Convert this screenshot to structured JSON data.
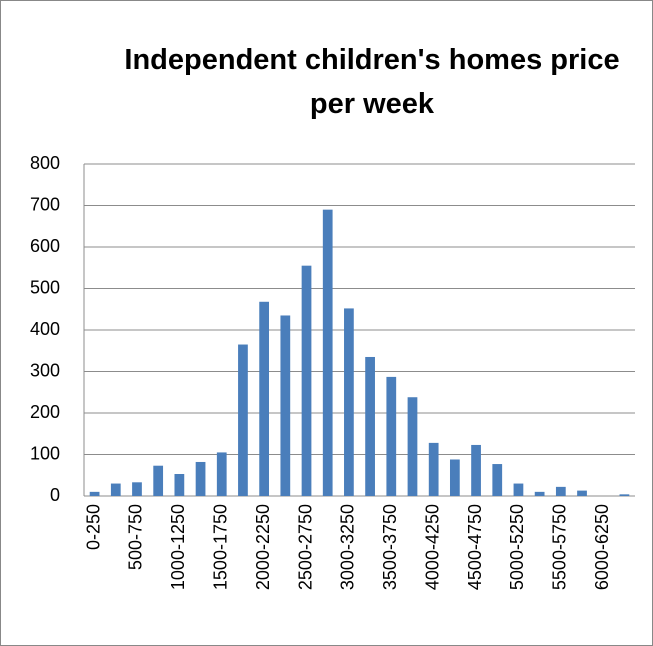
{
  "chart_data": {
    "type": "bar",
    "title": "Independent children's homes price per week",
    "categories": [
      "0-250",
      null,
      "500-750",
      null,
      "1000-1250",
      null,
      "1500-1750",
      null,
      "2000-2250",
      null,
      "2500-2750",
      null,
      "3000-3250",
      null,
      "3500-3750",
      null,
      "4000-4250",
      null,
      "4500-4750",
      null,
      "5000-5250",
      null,
      "5500-5750",
      null,
      "6000-6250",
      null
    ],
    "values": [
      10,
      30,
      33,
      73,
      53,
      82,
      105,
      365,
      468,
      435,
      555,
      690,
      452,
      335,
      287,
      238,
      128,
      88,
      123,
      77,
      30,
      10,
      22,
      13,
      0,
      4
    ],
    "color": "#4a7ebb",
    "ylim": [
      0,
      800
    ],
    "yticks": [
      0,
      100,
      200,
      300,
      400,
      500,
      600,
      700,
      800
    ],
    "grid": true
  }
}
